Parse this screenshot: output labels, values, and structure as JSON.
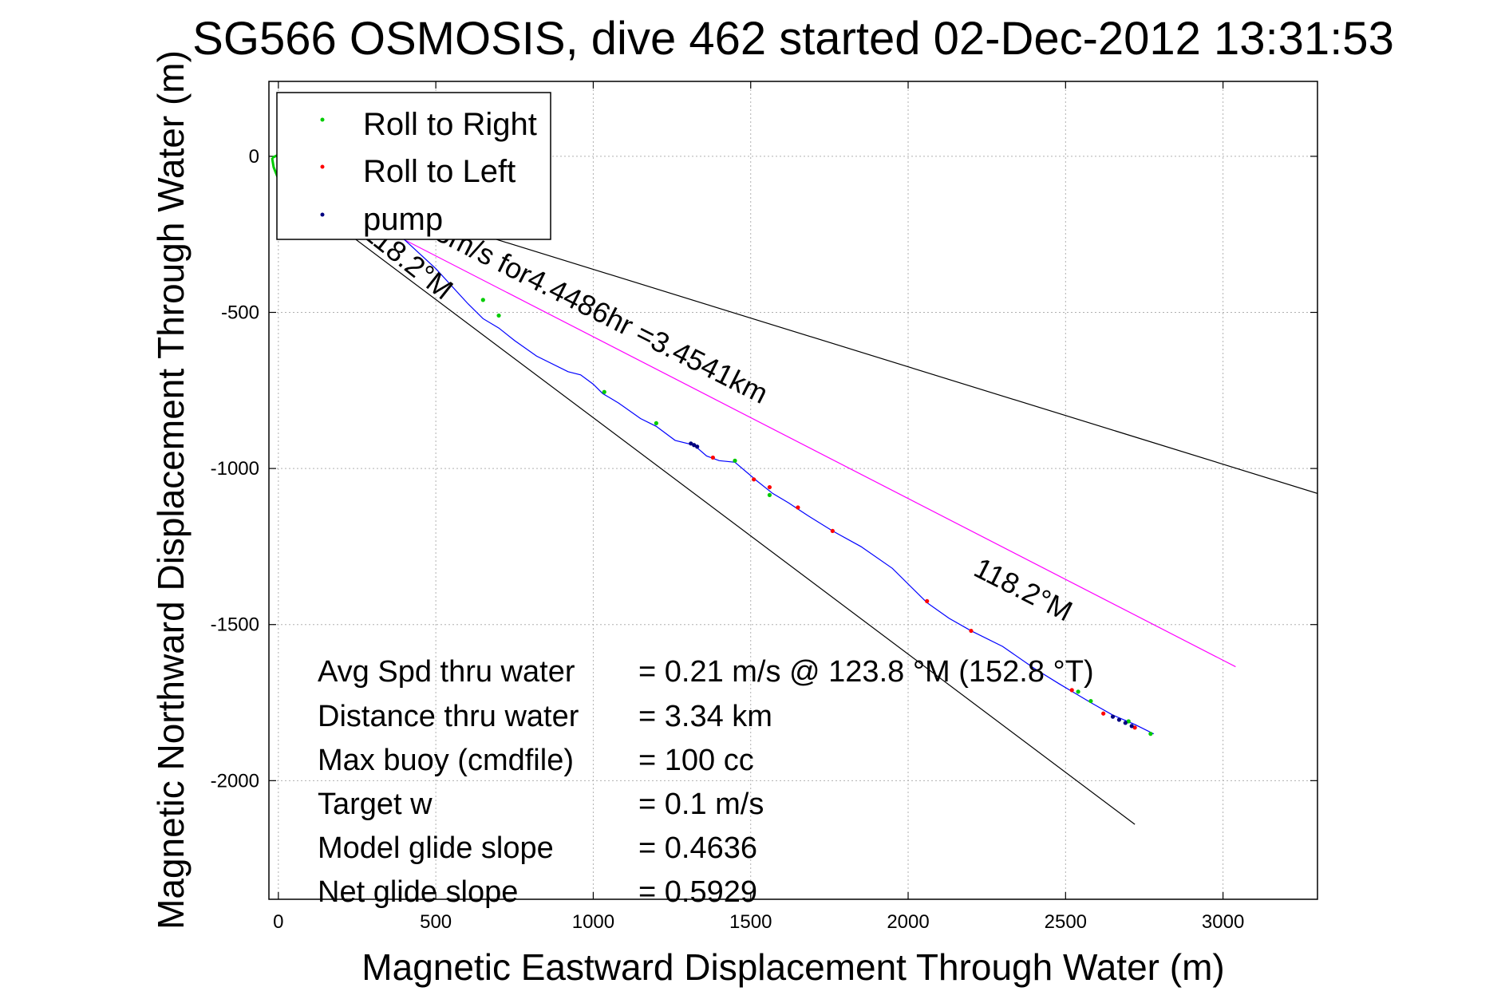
{
  "chart_data": {
    "type": "scatter",
    "title": "SG566 OSMOSIS, dive 462 started 02-Dec-2012 13:31:53",
    "xlabel": "Magnetic Eastward Displacement Through Water (m)",
    "ylabel": "Magnetic Northward Displacement Through Water (m)",
    "xlim": [
      -30,
      3300
    ],
    "ylim": [
      -2380,
      240
    ],
    "xticks": [
      0,
      500,
      1000,
      1500,
      2000,
      2500,
      3000
    ],
    "yticks": [
      0,
      -500,
      -1000,
      -1500,
      -2000
    ],
    "grid": true,
    "legend_position": "top-left",
    "legend": [
      {
        "label": "Roll to Right",
        "color": "#00cc00"
      },
      {
        "label": "Roll to Left",
        "color": "#ff0000"
      },
      {
        "label": "pump",
        "color": "#000080"
      }
    ],
    "track_color": "#0000ff",
    "track": {
      "x": [
        0,
        80,
        200,
        350,
        500,
        600,
        650,
        700,
        750,
        820,
        920,
        960,
        1000,
        1030,
        1080,
        1150,
        1200,
        1260,
        1320,
        1360,
        1400,
        1450,
        1520,
        1570,
        1620,
        1680,
        1760,
        1850,
        1950,
        2060,
        2130,
        2200,
        2300,
        2400,
        2480,
        2530,
        2580,
        2650,
        2720,
        2780
      ],
      "y": [
        0,
        -40,
        -110,
        -220,
        -360,
        -470,
        -520,
        -550,
        -590,
        -640,
        -690,
        -700,
        -730,
        -760,
        -790,
        -840,
        -865,
        -910,
        -925,
        -960,
        -975,
        -980,
        -1040,
        -1080,
        -1110,
        -1150,
        -1200,
        -1250,
        -1320,
        -1430,
        -1480,
        -1520,
        -1570,
        -1640,
        -1690,
        -1720,
        -1750,
        -1790,
        -1820,
        -1850
      ]
    },
    "roll_right": {
      "x": [
        650,
        700,
        1035,
        1200,
        1450,
        1560,
        2540,
        2580,
        2700,
        2770
      ],
      "y": [
        -460,
        -510,
        -755,
        -855,
        -975,
        -1085,
        -1715,
        -1745,
        -1810,
        -1850
      ]
    },
    "roll_left": {
      "x": [
        1380,
        1510,
        1560,
        1650,
        1760,
        2060,
        2200,
        2520,
        2620,
        2720
      ],
      "y": [
        -965,
        -1035,
        -1060,
        -1125,
        -1200,
        -1425,
        -1520,
        -1710,
        -1785,
        -1830
      ]
    },
    "pump": {
      "x": [
        1310,
        1320,
        1330,
        2650,
        2670,
        2690,
        2710
      ],
      "y": [
        -920,
        -925,
        -930,
        -1795,
        -1805,
        -1815,
        -1825
      ]
    },
    "start_loop": {
      "x": [
        -20,
        -15,
        -5,
        5,
        10,
        0,
        -20
      ],
      "y": [
        -5,
        -35,
        -60,
        -40,
        -10,
        5,
        -5
      ]
    },
    "heading_lines": [
      {
        "x": [
          0,
          3300
        ],
        "y": [
          -50,
          -1080
        ],
        "color": "#000000"
      },
      {
        "x": [
          0,
          2720
        ],
        "y": [
          -80,
          -2140
        ],
        "color": "#000000"
      },
      {
        "x": [
          0,
          3040
        ],
        "y": [
          -60,
          -1635
        ],
        "color": "#ff00ff"
      }
    ],
    "annotations": {
      "segment_1": "118.2°M",
      "segment_2": "0.2158m/s for4.4486hr =3.4541km",
      "segment_3": "118.2°M"
    },
    "stats": [
      {
        "label": "Avg Spd thru water",
        "value": "=  0.21 m/s @ 123.8 °M (152.8 °T)"
      },
      {
        "label": "Distance thru water",
        "value": "=  3.34 km"
      },
      {
        "label": "Max buoy (cmdfile)",
        "value": "= 100 cc"
      },
      {
        "label": "Target w",
        "value": "= 0.1 m/s"
      },
      {
        "label": "Model glide slope",
        "value": "= 0.4636"
      },
      {
        "label": "Net glide slope",
        "value": "= 0.5929"
      }
    ]
  }
}
